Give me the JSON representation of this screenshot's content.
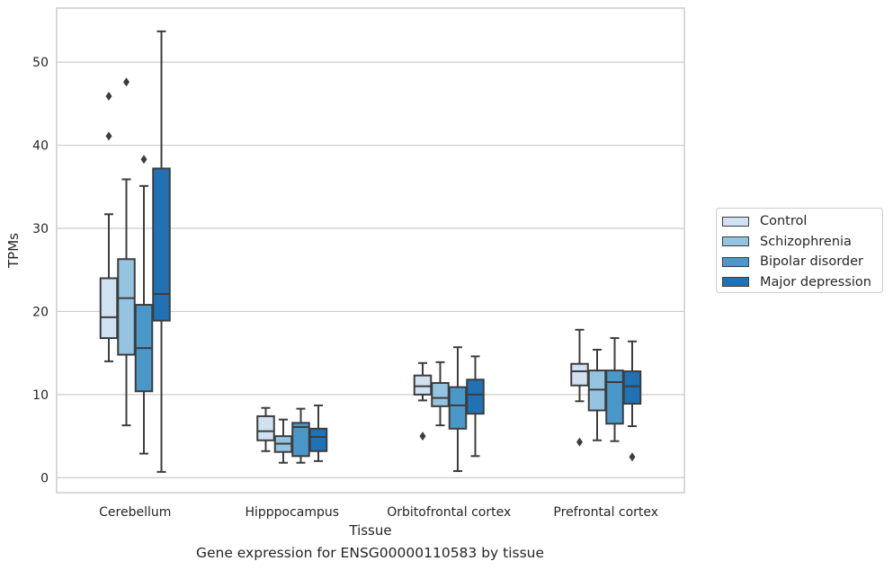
{
  "caption": "Gene expression for ENSG00000110583 by tissue",
  "chart_data": {
    "type": "box",
    "xlabel": "Tissue",
    "ylabel": "TPMs",
    "ylim": [
      -1.8,
      56.5
    ],
    "yticks": [
      0,
      10,
      20,
      30,
      40,
      50
    ],
    "grid": true,
    "legend_position": "right",
    "categories": [
      "Cerebellum",
      "Hipppocampus",
      "Orbitofrontal cortex",
      "Prefrontal cortex"
    ],
    "series": [
      {
        "name": "Control",
        "color": "#d0e1f2",
        "boxes": [
          {
            "whisker_low": 14.0,
            "q1": 16.8,
            "median": 19.3,
            "q3": 24.0,
            "whisker_high": 31.7,
            "outliers": [
              41.1,
              45.9
            ]
          },
          {
            "whisker_low": 3.2,
            "q1": 4.5,
            "median": 5.6,
            "q3": 7.4,
            "whisker_high": 8.4,
            "outliers": []
          },
          {
            "whisker_low": 9.3,
            "q1": 10.0,
            "median": 11.0,
            "q3": 12.3,
            "whisker_high": 13.8,
            "outliers": [
              5.0
            ]
          },
          {
            "whisker_low": 9.2,
            "q1": 11.1,
            "median": 12.8,
            "q3": 13.7,
            "whisker_high": 17.8,
            "outliers": [
              4.3
            ]
          }
        ]
      },
      {
        "name": "Schizophrenia",
        "color": "#94c4df",
        "boxes": [
          {
            "whisker_low": 6.3,
            "q1": 14.8,
            "median": 21.6,
            "q3": 26.3,
            "whisker_high": 35.9,
            "outliers": [
              47.6
            ]
          },
          {
            "whisker_low": 1.8,
            "q1": 3.1,
            "median": 4.1,
            "q3": 5.0,
            "whisker_high": 7.0,
            "outliers": []
          },
          {
            "whisker_low": 6.3,
            "q1": 8.6,
            "median": 9.6,
            "q3": 11.4,
            "whisker_high": 13.9,
            "outliers": []
          },
          {
            "whisker_low": 4.5,
            "q1": 8.1,
            "median": 10.6,
            "q3": 12.9,
            "whisker_high": 15.4,
            "outliers": []
          }
        ]
      },
      {
        "name": "Bipolar disorder",
        "color": "#4a98c9",
        "boxes": [
          {
            "whisker_low": 2.9,
            "q1": 10.4,
            "median": 15.6,
            "q3": 20.8,
            "whisker_high": 35.1,
            "outliers": [
              38.3
            ]
          },
          {
            "whisker_low": 1.8,
            "q1": 2.6,
            "median": 6.1,
            "q3": 6.6,
            "whisker_high": 8.3,
            "outliers": []
          },
          {
            "whisker_low": 0.8,
            "q1": 5.9,
            "median": 8.7,
            "q3": 10.9,
            "whisker_high": 15.7,
            "outliers": []
          },
          {
            "whisker_low": 4.4,
            "q1": 6.5,
            "median": 11.5,
            "q3": 12.9,
            "whisker_high": 16.8,
            "outliers": []
          }
        ]
      },
      {
        "name": "Major depression",
        "color": "#2171b5",
        "boxes": [
          {
            "whisker_low": 0.7,
            "q1": 18.9,
            "median": 22.1,
            "q3": 37.2,
            "whisker_high": 53.7,
            "outliers": []
          },
          {
            "whisker_low": 2.0,
            "q1": 3.2,
            "median": 4.9,
            "q3": 5.9,
            "whisker_high": 8.7,
            "outliers": []
          },
          {
            "whisker_low": 2.6,
            "q1": 7.7,
            "median": 10.0,
            "q3": 11.8,
            "whisker_high": 14.6,
            "outliers": []
          },
          {
            "whisker_low": 6.2,
            "q1": 8.9,
            "median": 11.0,
            "q3": 12.8,
            "whisker_high": 16.4,
            "outliers": [
              2.5
            ]
          }
        ]
      }
    ]
  }
}
